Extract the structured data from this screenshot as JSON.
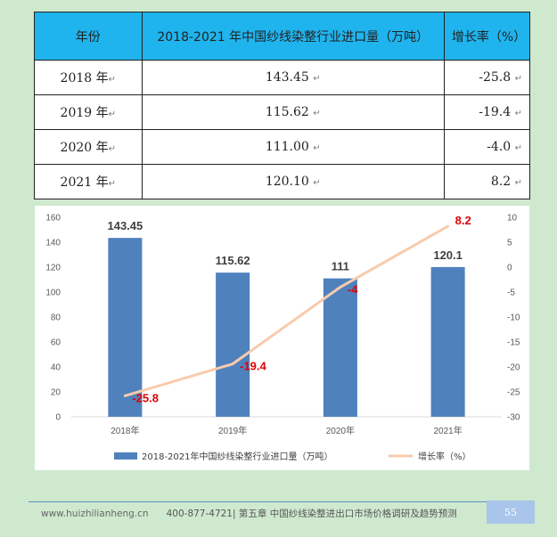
{
  "table": {
    "headers": [
      "年份",
      "2018-2021 年中国纱线染整行业进口量（万吨）",
      "增长率（%）"
    ],
    "rows": [
      {
        "year": "2018 年",
        "volume": "143.45",
        "rate": "-25.8"
      },
      {
        "year": "2019 年",
        "volume": "115.62",
        "rate": "-19.4"
      },
      {
        "year": "2020 年",
        "volume": "111.00",
        "rate": "-4.0"
      },
      {
        "year": "2021 年",
        "volume": "120.10",
        "rate": "8.2"
      }
    ]
  },
  "chart_data": {
    "type": "bar",
    "categories": [
      "2018年",
      "2019年",
      "2020年",
      "2021年"
    ],
    "series": [
      {
        "name": "2018-2021年中国纱线染整行业进口量（万吨）",
        "kind": "bar",
        "axis": "left",
        "color": "#4f81bd",
        "values": [
          143.45,
          115.62,
          111,
          120.1
        ],
        "labels": [
          "143.45",
          "115.62",
          "111",
          "120.1"
        ]
      },
      {
        "name": "增长率（%）",
        "kind": "line",
        "axis": "right",
        "color": "#f8cbad",
        "values": [
          -25.8,
          -19.4,
          -4,
          8.2
        ],
        "labels": [
          "-25.8",
          "-19.4",
          "-4",
          "8.2"
        ]
      }
    ],
    "y_left": {
      "range": [
        0,
        160
      ],
      "ticks": [
        "0",
        "20",
        "40",
        "60",
        "80",
        "100",
        "120",
        "140",
        "160"
      ]
    },
    "y_right": {
      "range": [
        -30,
        10
      ],
      "ticks": [
        "-30",
        "-25",
        "-20",
        "-15",
        "-10",
        "-5",
        "0",
        "5",
        "10"
      ]
    },
    "legend": "bottom",
    "grid": false
  },
  "footer": {
    "website": "www.huizhilianheng.cn",
    "phone": "400-877-4721|",
    "chapter": "第五章  中国纱线染整进出口市场价格调研及趋势预测",
    "page": "55"
  },
  "colors": {
    "header_fill": "#1fb4ee",
    "background": "#cfe9cf",
    "bar": "#4f81bd",
    "line": "#f8cbad",
    "rate_label": "#e00000"
  }
}
